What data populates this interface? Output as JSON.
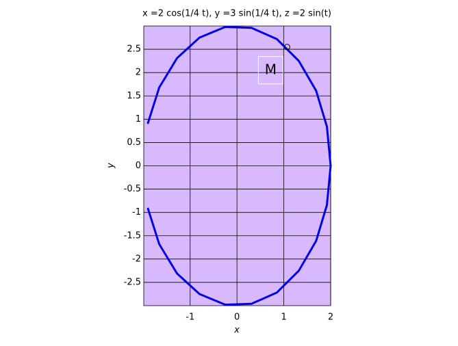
{
  "chart_data": {
    "type": "line",
    "title": "x =2 cos(1/4 t), y =3 sin(1/4 t), z =2 sin(t)",
    "x_label": "x",
    "y_label": "y",
    "xlim": [
      -1.99,
      2
    ],
    "ylim": [
      -3,
      3
    ],
    "xticks": [
      -1,
      0,
      1,
      2
    ],
    "yticks": [
      -2.5,
      -2,
      -1.5,
      -1,
      -0.5,
      0,
      0.5,
      1,
      1.5,
      2,
      2.5
    ],
    "grid": true,
    "background": "#d8b8ff",
    "series": [
      {
        "color": "#0000e6",
        "x": [
          -1.9,
          -1.66,
          -1.28,
          -0.8,
          -0.25,
          0.31,
          0.85,
          1.32,
          1.69,
          1.92,
          2,
          1.92,
          1.69,
          1.32,
          0.85,
          0.31,
          -0.25,
          -0.8,
          -1.28,
          -1.66,
          -1.9
        ],
        "values": [
          0.92,
          1.68,
          2.31,
          2.75,
          2.98,
          2.96,
          2.72,
          2.25,
          1.61,
          0.84,
          0,
          -0.84,
          -1.61,
          -2.25,
          -2.72,
          -2.96,
          -2.98,
          -2.75,
          -2.31,
          -1.68,
          -0.92
        ]
      }
    ],
    "marker": {
      "x": 1.07,
      "y": 2.55
    },
    "annotation": {
      "text": "M",
      "x": 0.72,
      "y": 2.05
    }
  }
}
